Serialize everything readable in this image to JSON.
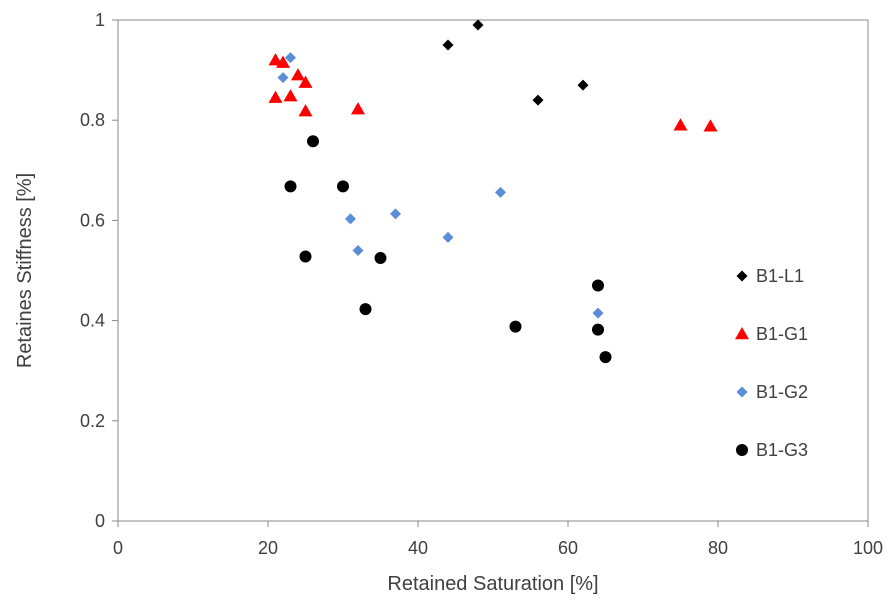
{
  "chart_data": {
    "type": "scatter",
    "xlabel": "Retained Saturation [%]",
    "ylabel": "Retaines Stiffness [%]",
    "xlim": [
      0,
      100
    ],
    "ylim": [
      0,
      1
    ],
    "x_ticks": [
      0,
      20,
      40,
      60,
      80,
      100
    ],
    "y_ticks": [
      0,
      0.2,
      0.4,
      0.6,
      0.8,
      1
    ],
    "x_tick_labels": [
      "0",
      "20",
      "40",
      "60",
      "80",
      "100"
    ],
    "y_tick_labels": [
      "0",
      "0.2",
      "0.4",
      "0.6",
      "0.8",
      "1"
    ],
    "grid": false,
    "legend_position": "right",
    "series": [
      {
        "name": "B1-L1",
        "marker": "diamond",
        "color": "#000000",
        "x": [
          44,
          48,
          56,
          62
        ],
        "y": [
          0.95,
          0.99,
          0.84,
          0.87
        ]
      },
      {
        "name": "B1-G1",
        "marker": "triangle",
        "color": "#ff0000",
        "x": [
          21,
          22,
          24,
          25,
          21,
          23,
          25,
          32,
          75,
          79
        ],
        "y": [
          0.92,
          0.915,
          0.89,
          0.875,
          0.845,
          0.848,
          0.818,
          0.822,
          0.79,
          0.788
        ]
      },
      {
        "name": "B1-G2",
        "marker": "diamond",
        "color": "#5b8ed6",
        "x": [
          23,
          22,
          31,
          32,
          37,
          44,
          51,
          64
        ],
        "y": [
          0.925,
          0.885,
          0.603,
          0.54,
          0.613,
          0.566,
          0.656,
          0.415
        ]
      },
      {
        "name": "B1-G3",
        "marker": "circle",
        "color": "#000000",
        "x": [
          26,
          23,
          30,
          25,
          35,
          33,
          53,
          64,
          64,
          65
        ],
        "y": [
          0.758,
          0.668,
          0.668,
          0.528,
          0.525,
          0.423,
          0.388,
          0.47,
          0.382,
          0.327
        ]
      }
    ]
  }
}
